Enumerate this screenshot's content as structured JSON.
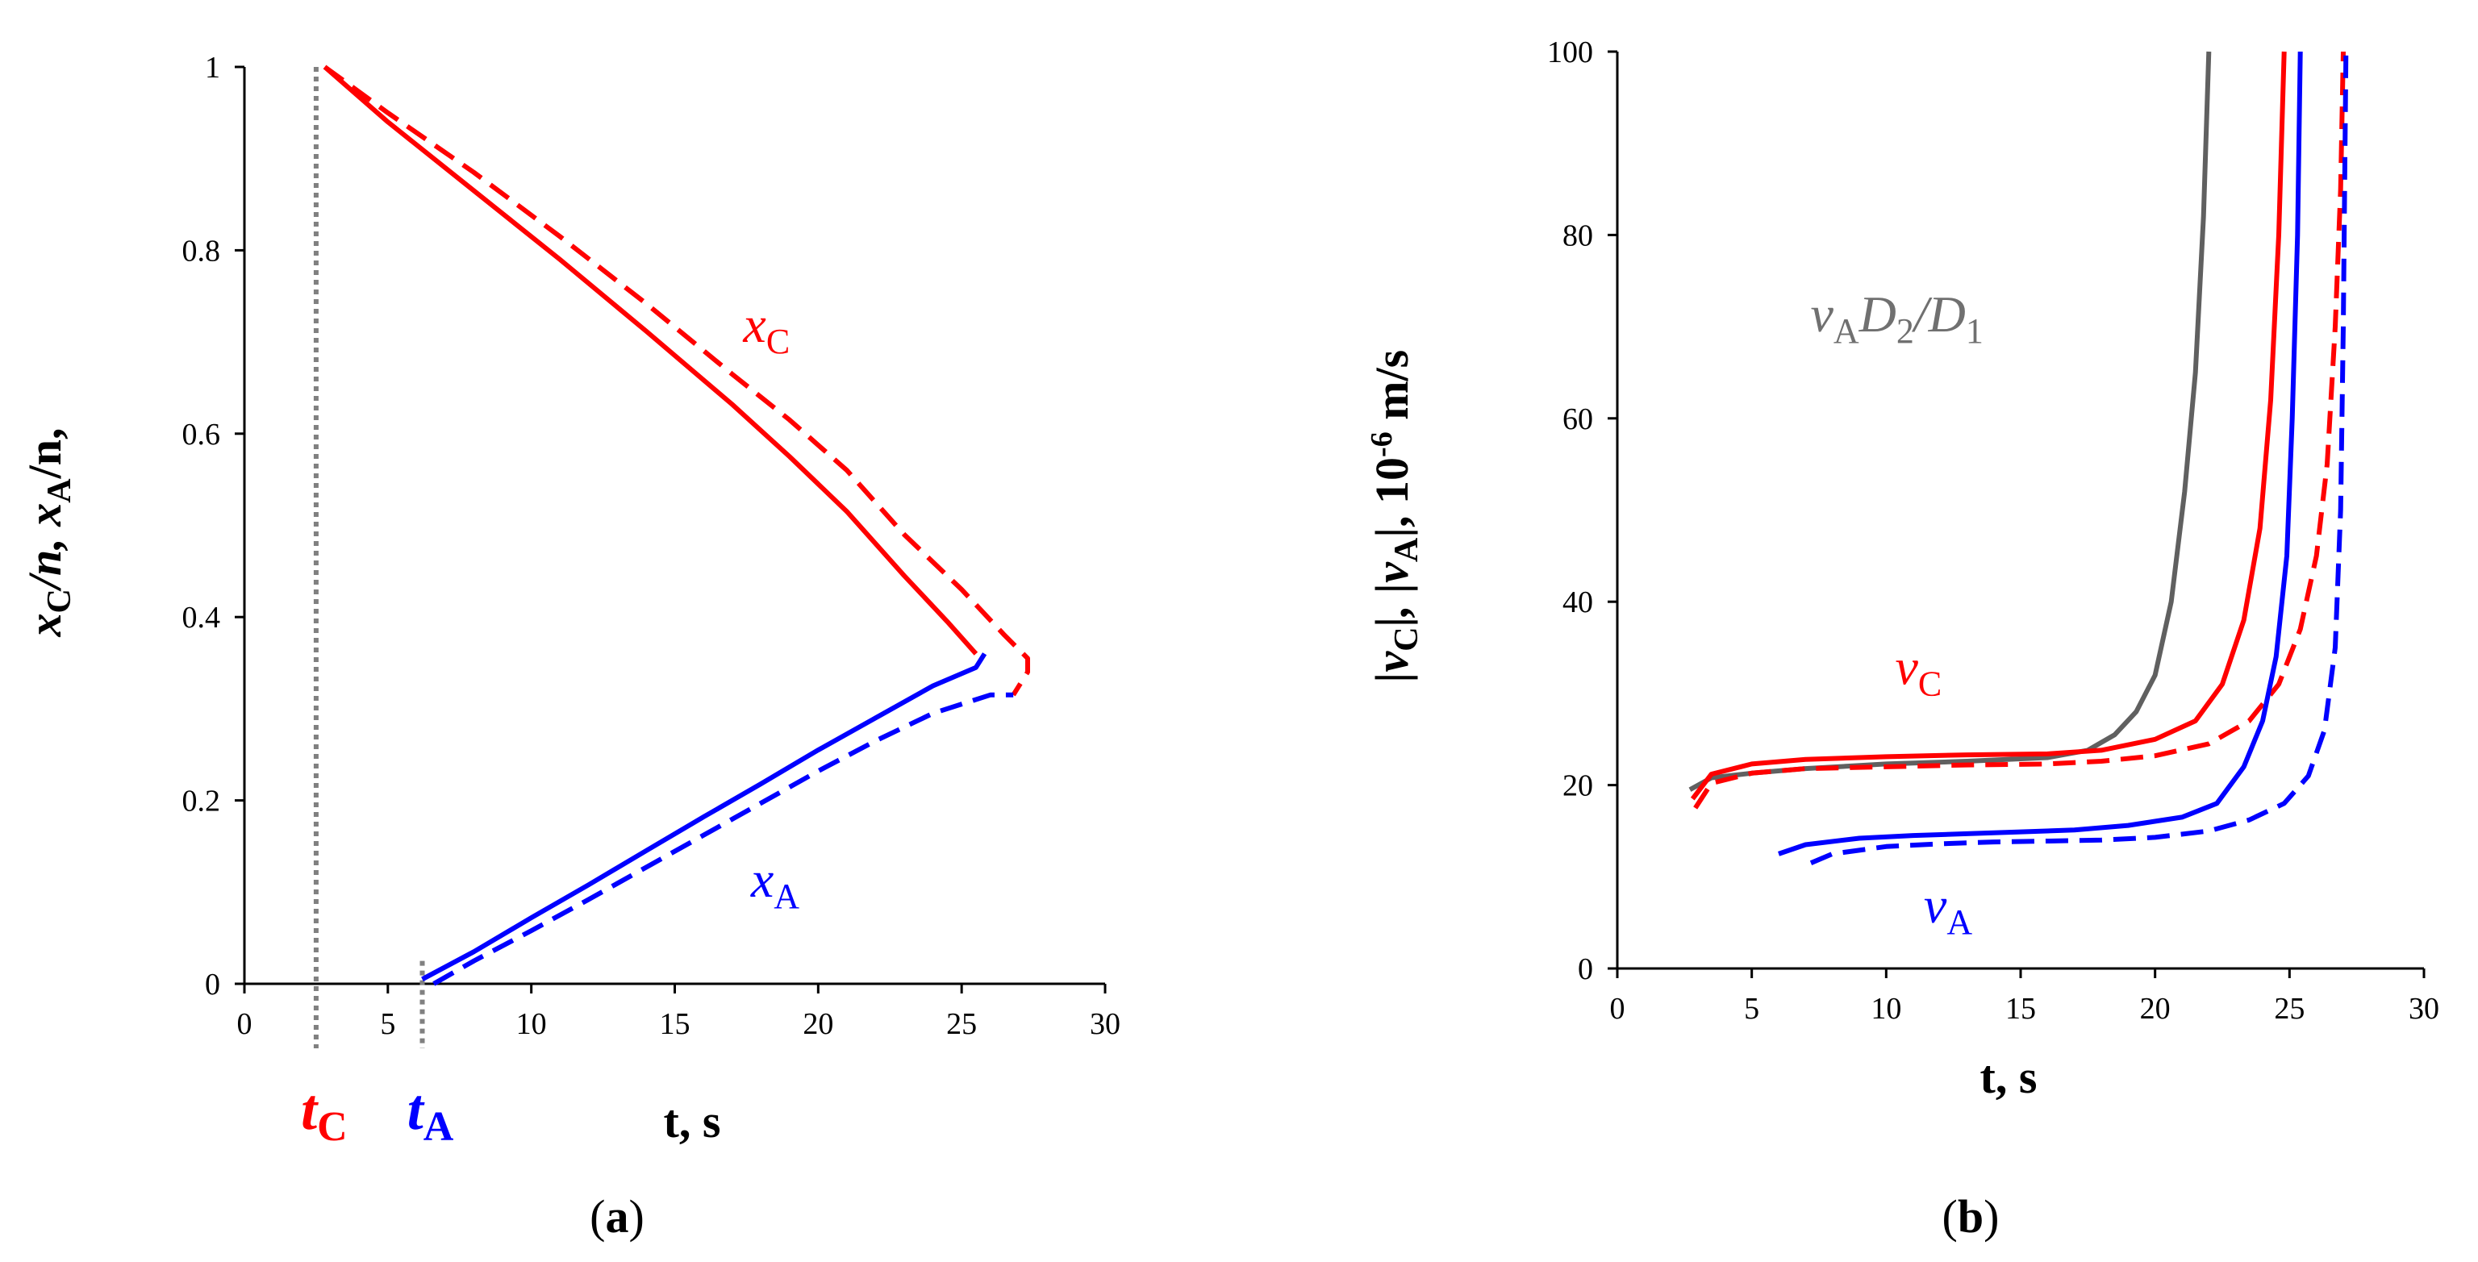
{
  "colors": {
    "red": "#ff0000",
    "blue": "#0000ff",
    "gray": "#606060",
    "marker": "#808080",
    "axis": "#000000"
  },
  "chart_data": [
    {
      "type": "line",
      "panel_label": "(a)",
      "xlabel": "t, s",
      "ylabel": {
        "p1": "x",
        "p1_sub": "C",
        "p2": "/n, x",
        "p2_sub": "A",
        "p3": "/n,"
      },
      "xlim": [
        0,
        30
      ],
      "ylim": [
        0,
        1
      ],
      "xticks": [
        "0",
        "5",
        "10",
        "15",
        "20",
        "25",
        "30"
      ],
      "yticks": [
        "0",
        "0.2",
        "0.4",
        "0.6",
        "0.8",
        "1"
      ],
      "markers": [
        {
          "name": "t_C",
          "x": 2.5,
          "y_range": [
            0,
            1
          ],
          "label": "t",
          "label_sub": "C",
          "color": "#ff0000"
        },
        {
          "name": "t_A",
          "x": 6.2,
          "y_range": [
            0,
            0.025
          ],
          "label": "t",
          "label_sub": "A",
          "color": "#0000ff"
        }
      ],
      "series": [
        {
          "name": "x_C solid",
          "color": "#ff0000",
          "dashed": false,
          "points": [
            [
              2.8,
              1.0
            ],
            [
              5,
              0.94
            ],
            [
              8,
              0.865
            ],
            [
              11,
              0.79
            ],
            [
              14,
              0.712
            ],
            [
              17,
              0.632
            ],
            [
              19,
              0.575
            ],
            [
              21,
              0.515
            ],
            [
              23,
              0.445
            ],
            [
              24.5,
              0.395
            ],
            [
              25.5,
              0.36
            ]
          ]
        },
        {
          "name": "x_C dashed",
          "color": "#ff0000",
          "dashed": true,
          "points": [
            [
              2.8,
              1.0
            ],
            [
              5,
              0.95
            ],
            [
              8,
              0.885
            ],
            [
              11,
              0.815
            ],
            [
              14,
              0.742
            ],
            [
              17,
              0.665
            ],
            [
              19,
              0.615
            ],
            [
              21,
              0.56
            ],
            [
              23,
              0.49
            ],
            [
              25,
              0.43
            ],
            [
              26.5,
              0.38
            ],
            [
              27.3,
              0.355
            ],
            [
              27.3,
              0.34
            ],
            [
              26.8,
              0.315
            ]
          ]
        },
        {
          "name": "x_A solid",
          "color": "#0000ff",
          "dashed": false,
          "points": [
            [
              6.2,
              0.005
            ],
            [
              8,
              0.035
            ],
            [
              10,
              0.072
            ],
            [
              12,
              0.108
            ],
            [
              14,
              0.145
            ],
            [
              16,
              0.182
            ],
            [
              18,
              0.218
            ],
            [
              20,
              0.255
            ],
            [
              22,
              0.29
            ],
            [
              24,
              0.325
            ],
            [
              25.5,
              0.345
            ],
            [
              25.8,
              0.36
            ]
          ]
        },
        {
          "name": "x_A dashed",
          "color": "#0000ff",
          "dashed": true,
          "points": [
            [
              6.6,
              0.0
            ],
            [
              8,
              0.025
            ],
            [
              10,
              0.058
            ],
            [
              12,
              0.092
            ],
            [
              14,
              0.127
            ],
            [
              16,
              0.162
            ],
            [
              18,
              0.197
            ],
            [
              20,
              0.232
            ],
            [
              22,
              0.265
            ],
            [
              24,
              0.295
            ],
            [
              26,
              0.315
            ],
            [
              26.8,
              0.315
            ]
          ]
        }
      ],
      "annotations": [
        {
          "text": "x",
          "sub": "C",
          "color": "#ff0000",
          "x": 18.2,
          "y": 0.7
        },
        {
          "text": "x",
          "sub": "A",
          "color": "#0000ff",
          "x": 18.5,
          "y": 0.095
        }
      ]
    },
    {
      "type": "line",
      "panel_label": "(b)",
      "xlabel": "t, s",
      "ylabel": {
        "p1": "|v",
        "p1_sub": "C",
        "p2": "|, |v",
        "p2_sub": "A",
        "p3": "|, 10",
        "p3_sup": "-6",
        "p4": " m/s"
      },
      "xlim": [
        0,
        30
      ],
      "ylim": [
        0,
        100
      ],
      "xticks": [
        "0",
        "5",
        "10",
        "15",
        "20",
        "25",
        "30"
      ],
      "yticks": [
        "0",
        "20",
        "40",
        "60",
        "80",
        "100"
      ],
      "series": [
        {
          "name": "v_A D2/D1",
          "color": "#606060",
          "dashed": false,
          "points": [
            [
              2.7,
              19.5
            ],
            [
              3.5,
              20.8
            ],
            [
              5,
              21.3
            ],
            [
              7,
              21.8
            ],
            [
              10,
              22.3
            ],
            [
              13,
              22.6
            ],
            [
              16,
              23
            ],
            [
              17.5,
              23.8
            ],
            [
              18.5,
              25.5
            ],
            [
              19.3,
              28
            ],
            [
              20,
              32
            ],
            [
              20.6,
              40
            ],
            [
              21.1,
              52
            ],
            [
              21.5,
              65
            ],
            [
              21.8,
              82
            ],
            [
              22,
              100
            ]
          ]
        },
        {
          "name": "v_C solid",
          "color": "#ff0000",
          "dashed": false,
          "points": [
            [
              2.8,
              18.5
            ],
            [
              3.5,
              21.2
            ],
            [
              5,
              22.3
            ],
            [
              7,
              22.8
            ],
            [
              10,
              23.1
            ],
            [
              13,
              23.3
            ],
            [
              16,
              23.4
            ],
            [
              18,
              23.8
            ],
            [
              20,
              25
            ],
            [
              21.5,
              27
            ],
            [
              22.5,
              31
            ],
            [
              23.3,
              38
            ],
            [
              23.9,
              48
            ],
            [
              24.3,
              62
            ],
            [
              24.6,
              80
            ],
            [
              24.8,
              100
            ]
          ]
        },
        {
          "name": "v_C dashed",
          "color": "#ff0000",
          "dashed": true,
          "points": [
            [
              2.9,
              17.5
            ],
            [
              3.5,
              20.2
            ],
            [
              5,
              21.3
            ],
            [
              7,
              21.8
            ],
            [
              10,
              22
            ],
            [
              13,
              22.2
            ],
            [
              16,
              22.3
            ],
            [
              18,
              22.6
            ],
            [
              20,
              23.2
            ],
            [
              22,
              24.5
            ],
            [
              23.5,
              27
            ],
            [
              24.6,
              31
            ],
            [
              25.4,
              37
            ],
            [
              26,
              45
            ],
            [
              26.4,
              55
            ],
            [
              26.7,
              70
            ],
            [
              26.9,
              85
            ],
            [
              27,
              100
            ]
          ]
        },
        {
          "name": "v_A solid",
          "color": "#0000ff",
          "dashed": false,
          "points": [
            [
              6,
              12.5
            ],
            [
              7,
              13.5
            ],
            [
              9,
              14.2
            ],
            [
              11,
              14.5
            ],
            [
              13,
              14.7
            ],
            [
              15,
              14.9
            ],
            [
              17,
              15.1
            ],
            [
              19,
              15.6
            ],
            [
              21,
              16.5
            ],
            [
              22.3,
              18
            ],
            [
              23.3,
              22
            ],
            [
              24,
              27
            ],
            [
              24.5,
              34
            ],
            [
              24.9,
              45
            ],
            [
              25.1,
              60
            ],
            [
              25.3,
              80
            ],
            [
              25.4,
              100
            ]
          ]
        },
        {
          "name": "v_A dashed",
          "color": "#0000ff",
          "dashed": true,
          "points": [
            [
              7.2,
              11.5
            ],
            [
              8,
              12.5
            ],
            [
              10,
              13.3
            ],
            [
              12,
              13.6
            ],
            [
              14,
              13.8
            ],
            [
              16,
              13.9
            ],
            [
              18,
              14
            ],
            [
              20,
              14.3
            ],
            [
              22,
              15
            ],
            [
              23.5,
              16.2
            ],
            [
              24.8,
              18
            ],
            [
              25.7,
              21
            ],
            [
              26.3,
              26
            ],
            [
              26.7,
              35
            ],
            [
              26.9,
              50
            ],
            [
              27,
              70
            ],
            [
              27.1,
              100
            ]
          ]
        }
      ],
      "annotations": [
        {
          "text": "v",
          "sub": "A",
          "extra": "D",
          "extra_sub": "2",
          "extra2": "/D",
          "extra2_sub": "1",
          "color": "#707070",
          "x": 10.4,
          "y": 69.5
        },
        {
          "text": "v",
          "sub": "C",
          "color": "#ff0000",
          "x": 11.2,
          "y": 31
        },
        {
          "text": "v",
          "sub": "A",
          "color": "#0000ff",
          "x": 12.3,
          "y": 5
        }
      ]
    }
  ]
}
